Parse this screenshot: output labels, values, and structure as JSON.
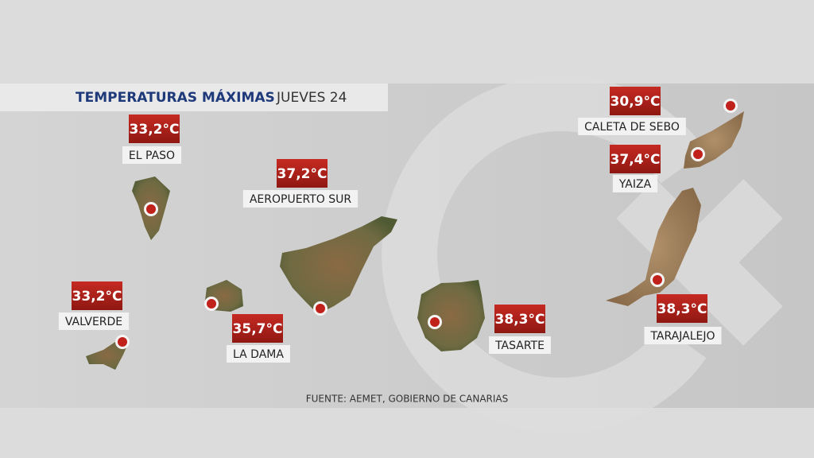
{
  "header": {
    "title": "TEMPERATURAS MÁXIMAS",
    "subtitle": "JUEVES 24"
  },
  "stations": [
    {
      "temperature": "33,2°C",
      "name": "EL PASO"
    },
    {
      "temperature": "37,2°C",
      "name": "AEROPUERTO SUR"
    },
    {
      "temperature": "33,2°C",
      "name": "VALVERDE"
    },
    {
      "temperature": "35,7°C",
      "name": "LA DAMA"
    },
    {
      "temperature": "38,3°C",
      "name": "TASARTE"
    },
    {
      "temperature": "30,9°C",
      "name": "CALETA DE SEBO"
    },
    {
      "temperature": "37,4°C",
      "name": "YAIZA"
    },
    {
      "temperature": "38,3°C",
      "name": "TARAJALEJO"
    }
  ],
  "source": "FUENTE: AEMET, GOBIERNO DE CANARIAS"
}
